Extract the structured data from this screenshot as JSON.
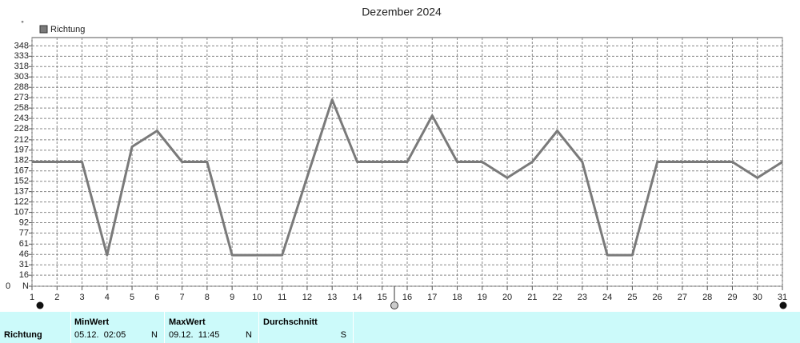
{
  "chart_data": {
    "type": "line",
    "title": "Dezember 2024",
    "ylabel": "°",
    "y_origin_label": "0",
    "x": [
      1,
      2,
      3,
      4,
      5,
      6,
      7,
      8,
      9,
      10,
      11,
      12,
      13,
      14,
      15,
      16,
      17,
      18,
      19,
      20,
      21,
      22,
      23,
      24,
      25,
      26,
      27,
      28,
      29,
      30,
      31
    ],
    "xlim": [
      1,
      31
    ],
    "xticks": [
      1,
      2,
      3,
      4,
      5,
      6,
      7,
      8,
      9,
      10,
      11,
      12,
      13,
      14,
      15,
      16,
      17,
      18,
      19,
      20,
      21,
      22,
      23,
      24,
      25,
      26,
      27,
      28,
      29,
      30,
      31
    ],
    "series": [
      {
        "name": "Richtung",
        "color": "#7a7a7a",
        "values": [
          180,
          180,
          180,
          45,
          202,
          225,
          180,
          180,
          45,
          45,
          45,
          158,
          270,
          180,
          180,
          180,
          247,
          180,
          180,
          157,
          180,
          225,
          180,
          45,
          45,
          180,
          180,
          180,
          180,
          157,
          180
        ]
      }
    ],
    "ylim": [
      0,
      360
    ],
    "yticks": [
      {
        "value": 0,
        "label": "N"
      },
      16,
      31,
      46,
      61,
      77,
      92,
      107,
      122,
      137,
      152,
      167,
      182,
      197,
      212,
      228,
      243,
      258,
      273,
      288,
      303,
      318,
      333,
      348
    ],
    "grid": true
  },
  "summary": {
    "row_label": "Richtung",
    "columns": [
      {
        "header": "MinWert",
        "value": "05.12.  02:05",
        "direction": "N"
      },
      {
        "header": "MaxWert",
        "value": "09.12.  11:45",
        "direction": "N"
      },
      {
        "header": "Durchschnitt",
        "direction": "S"
      }
    ]
  }
}
